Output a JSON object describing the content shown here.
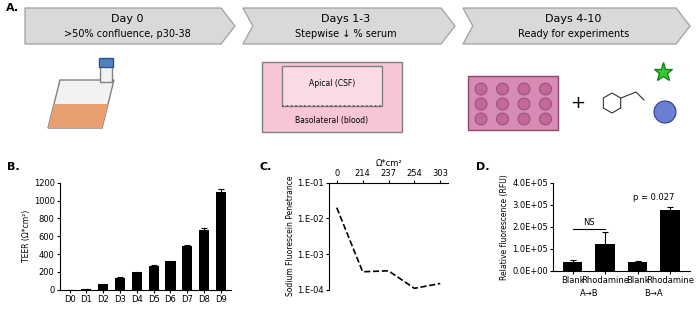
{
  "diagram": {
    "panel": "A.",
    "steps": [
      {
        "title": "Day 0",
        "text": ">50% confluence, p30-38"
      },
      {
        "title": "Days 1-3",
        "text": "Stepwise ↓ % serum"
      },
      {
        "title": "Days 4-10",
        "text": "Ready for experiments"
      }
    ],
    "transwell": {
      "apical": "Apical (CSF)",
      "basolateral": "Basolateral (blood)"
    },
    "plus": "+"
  },
  "chart_data": [
    {
      "panel": "B.",
      "type": "bar",
      "y_label": "TEER (Ω*cm²)",
      "categories": [
        "D0",
        "D1",
        "D2",
        "D3",
        "D4",
        "D5",
        "D6",
        "D7",
        "D8",
        "D9"
      ],
      "values": [
        0,
        8,
        60,
        135,
        195,
        270,
        320,
        495,
        675,
        1100
      ],
      "errors": [
        0,
        1,
        3,
        4,
        5,
        5,
        6,
        10,
        15,
        25
      ],
      "color": "#000000",
      "ylim": [
        0,
        1200
      ],
      "yticks": [
        0,
        200,
        400,
        600,
        800,
        1000,
        1200
      ]
    },
    {
      "panel": "C.",
      "type": "line",
      "x_label": "Ω*cm²",
      "y_label": "Sodium Fluorescein Penetrance",
      "categories": [
        "0",
        "214",
        "237",
        "254",
        "303"
      ],
      "values": [
        0.02,
        0.00032,
        0.00034,
        0.00011,
        0.00015
      ],
      "color": "#000000",
      "line_style": "dashed",
      "log": "y",
      "ylim": [
        0.0001,
        0.1
      ],
      "yticks": [
        {
          "value": 0.0001,
          "label": "1.E-04"
        },
        {
          "value": 0.001,
          "label": "1.E-03"
        },
        {
          "value": 0.01,
          "label": "1.E-02"
        },
        {
          "value": 0.1,
          "label": "1.E-01"
        }
      ]
    },
    {
      "panel": "D.",
      "type": "bar",
      "y_label": "Relative fluorescence (RFU)",
      "categories": [
        "Blank",
        "Rhodamine",
        "Blank",
        "Rhodamine"
      ],
      "groups": [
        "A→B",
        "B→A"
      ],
      "values": [
        40000,
        120000,
        40000,
        278000
      ],
      "errors": [
        8000,
        55000,
        5000,
        12000
      ],
      "color": "#000000",
      "ylim": [
        0,
        400000
      ],
      "yticks": [
        {
          "value": 0,
          "label": "0.0E+00"
        },
        {
          "value": 100000,
          "label": "1.0E+05"
        },
        {
          "value": 200000,
          "label": "2.0E+05"
        },
        {
          "value": 300000,
          "label": "3.0E+05"
        },
        {
          "value": 400000,
          "label": "4.0E+05"
        }
      ],
      "annotations": [
        {
          "text": "NS",
          "between": [
            0,
            1
          ],
          "bracket": true
        },
        {
          "text": "p = 0.027",
          "between": [
            2,
            3
          ],
          "bracket": false
        }
      ]
    }
  ]
}
